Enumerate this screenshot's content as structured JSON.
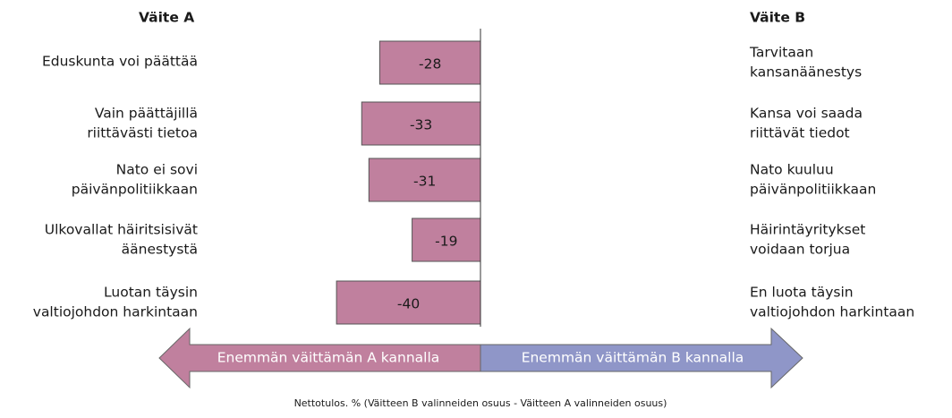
{
  "chart_data": {
    "type": "diverging_bar",
    "left_header": "Väite A",
    "right_header": "Väite B",
    "categories": [
      [
        "Eduskunta voi päättää"
      ],
      [
        "Vain päättäjillä",
        "riittävästi tietoa"
      ],
      [
        "Nato ei sovi",
        "päivänpolitiikkaan"
      ],
      [
        "Ulkovallat häiritsisivät",
        "äänestystä"
      ],
      [
        "Luotan täysin",
        "valtiojohdon harkintaan"
      ]
    ],
    "right_labels": [
      [
        "Tarvitaan",
        "kansanäänestys"
      ],
      [
        "Kansa voi saada",
        "riittävät tiedot"
      ],
      [
        "Nato kuuluu",
        "päivänpolitiikkaan"
      ],
      [
        "Häirintäyritykset",
        "voidaan torjua"
      ],
      [
        "En luota täysin",
        "valtiojohdon harkintaan"
      ]
    ],
    "values": [
      -28,
      -33,
      -31,
      -19,
      -40
    ],
    "color": "#c0809e",
    "xlim": [
      -45,
      45
    ],
    "arrow_left_label": "Enemmän väittämän A kannalla",
    "arrow_left_color": "#c0809e",
    "arrow_right_label": "Enemmän väittämän B kannalla",
    "arrow_right_color": "#8f96c8",
    "footnote": "Nettotulos. % (Väitteen B valinneiden osuus - Väitteen A valinneiden osuus)"
  }
}
